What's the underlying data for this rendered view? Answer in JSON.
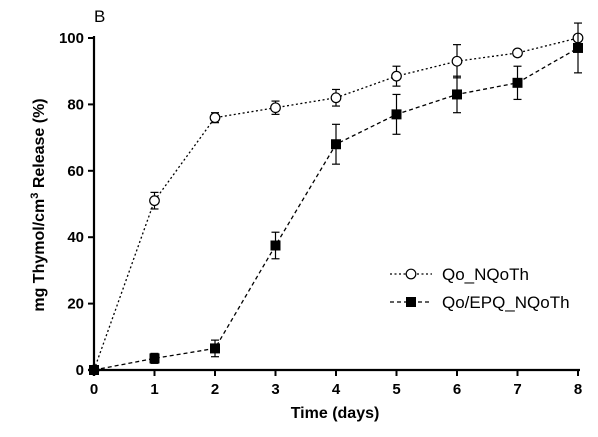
{
  "chart_data": {
    "type": "line",
    "panel_label": "B",
    "xlabel": "Time (days)",
    "ylabel": {
      "prefix": "mg Thymol/cm",
      "superscript": "3",
      "suffix": " Release (%)"
    },
    "xlim": [
      0,
      8
    ],
    "ylim": [
      0,
      100
    ],
    "x_ticks": [
      0,
      1,
      2,
      3,
      4,
      5,
      6,
      7,
      8
    ],
    "y_ticks": [
      0,
      20,
      40,
      60,
      80,
      100
    ],
    "grid": false,
    "legend_position": "right",
    "series": [
      {
        "name": "Qo_NQoTh",
        "marker": "open-circle",
        "line_style": "dotted",
        "x": [
          0,
          1,
          2,
          3,
          4,
          5,
          6,
          7,
          8
        ],
        "y": [
          0,
          51,
          76,
          79,
          82,
          88.5,
          93,
          95.5,
          100
        ],
        "err": [
          0,
          2.5,
          1.5,
          2,
          2.5,
          3,
          5,
          1,
          1
        ]
      },
      {
        "name": "Qo/EPQ_NQoTh",
        "marker": "filled-square",
        "line_style": "dashed",
        "x": [
          0,
          1,
          2,
          3,
          4,
          5,
          6,
          7,
          8
        ],
        "y": [
          0,
          3.5,
          6.5,
          37.5,
          68,
          77,
          83,
          86.5,
          97
        ],
        "err": [
          0,
          1.5,
          2.5,
          4,
          6,
          6,
          5.5,
          5,
          7.5
        ]
      }
    ]
  }
}
